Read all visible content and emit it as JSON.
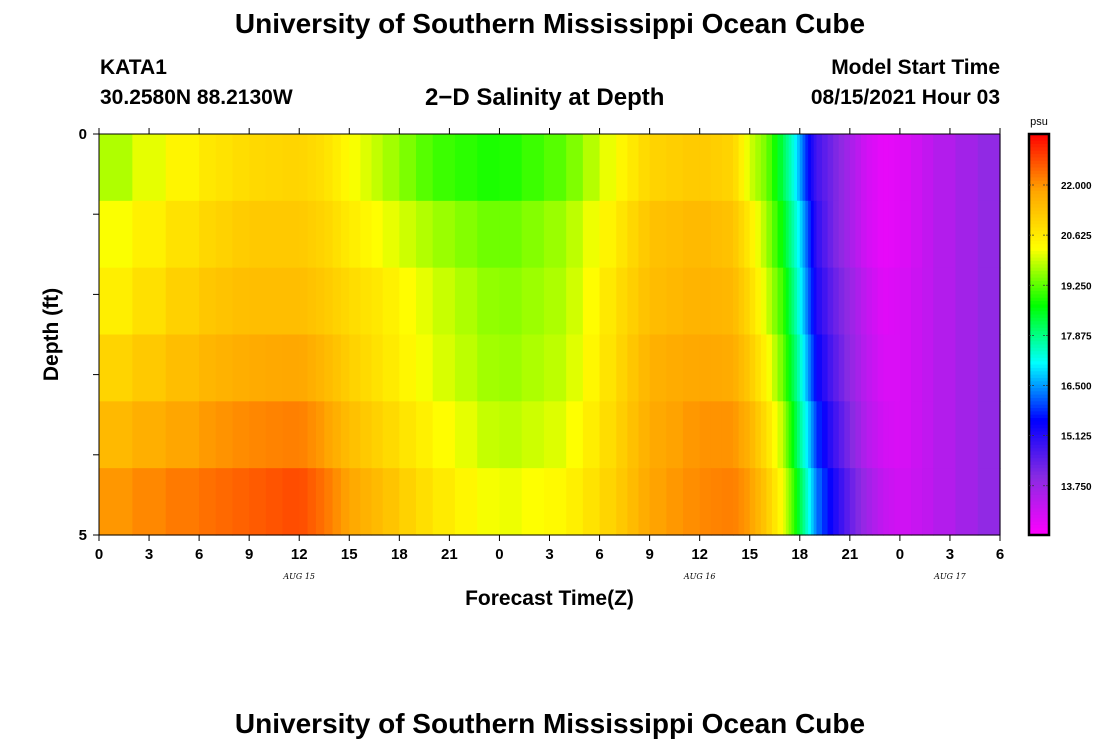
{
  "header": {
    "title": "University of Southern Mississippi Ocean Cube",
    "station": "KATA1",
    "coords": "30.2580N  88.2130W",
    "subtitle": "2−D Salinity at Depth",
    "model_start_label": "Model Start Time",
    "model_start_value": "08/15/2021 Hour 03"
  },
  "footer": {
    "title": "University of Southern Mississippi Ocean Cube"
  },
  "chart_data": {
    "type": "heatmap",
    "title": "2−D Salinity at Depth",
    "xlabel": "Forecast Time(Z)",
    "ylabel": "Depth (ft)",
    "x_hours": [
      0,
      6,
      9,
      12,
      13.5,
      15,
      17,
      20,
      24,
      28,
      31,
      33,
      36,
      38,
      39,
      40,
      41,
      41.5,
      42,
      42.5,
      43,
      44,
      45,
      46,
      47,
      48,
      50,
      54
    ],
    "xlim": [
      0,
      54
    ],
    "ylim": [
      0,
      5
    ],
    "depth_rows": [
      0,
      1,
      2,
      3,
      4,
      5
    ],
    "x_tick_labels": [
      "0",
      "3",
      "6",
      "9",
      "12",
      "15",
      "18",
      "21",
      "0",
      "3",
      "6",
      "9",
      "12",
      "15",
      "18",
      "21",
      "0",
      "3",
      "6"
    ],
    "y_tick_labels": [
      "0",
      "5"
    ],
    "date_labels": [
      {
        "text": "AUG  15",
        "hour": 12
      },
      {
        "text": "AUG  16",
        "hour": 36
      },
      {
        "text": "AUG  17",
        "hour": 51
      }
    ],
    "salinity_psu": [
      [
        19.6,
        20.6,
        20.9,
        21.0,
        20.8,
        20.3,
        19.8,
        19.1,
        18.8,
        19.3,
        20.3,
        21.0,
        21.2,
        21.0,
        20.0,
        19.4,
        18.2,
        17.5,
        16.6,
        15.6,
        14.8,
        14.2,
        13.6,
        13.0,
        12.7,
        12.8,
        13.3,
        14.0
      ],
      [
        20.1,
        20.9,
        21.2,
        21.2,
        21.0,
        20.6,
        20.2,
        19.7,
        19.3,
        19.7,
        20.6,
        21.3,
        21.5,
        21.3,
        20.6,
        19.7,
        18.6,
        17.8,
        17.0,
        16.0,
        15.0,
        14.2,
        13.6,
        13.0,
        12.7,
        12.8,
        13.3,
        14.0
      ],
      [
        20.4,
        21.2,
        21.4,
        21.4,
        21.2,
        20.9,
        20.6,
        20.0,
        19.5,
        19.8,
        20.8,
        21.4,
        21.6,
        21.5,
        20.9,
        20.0,
        19.0,
        18.1,
        17.2,
        16.2,
        15.2,
        14.4,
        13.8,
        13.2,
        12.8,
        12.9,
        13.3,
        14.0
      ],
      [
        20.9,
        21.5,
        21.7,
        21.8,
        21.5,
        21.1,
        20.7,
        20.1,
        19.6,
        19.9,
        20.9,
        21.6,
        21.8,
        21.7,
        21.2,
        20.4,
        19.3,
        18.4,
        17.5,
        16.5,
        15.5,
        14.6,
        13.9,
        13.3,
        12.9,
        12.9,
        13.3,
        14.0
      ],
      [
        21.4,
        21.9,
        22.1,
        22.2,
        21.9,
        21.4,
        21.0,
        20.4,
        19.8,
        20.1,
        21.0,
        21.7,
        22.0,
        22.0,
        21.6,
        20.8,
        19.8,
        18.8,
        17.8,
        16.9,
        15.9,
        14.9,
        14.1,
        13.4,
        13.0,
        12.9,
        13.3,
        14.0
      ],
      [
        21.9,
        22.3,
        22.5,
        22.7,
        22.3,
        21.8,
        21.4,
        20.7,
        20.1,
        20.4,
        21.1,
        21.8,
        22.1,
        22.2,
        21.9,
        21.2,
        20.2,
        19.3,
        18.3,
        17.3,
        16.3,
        15.3,
        14.4,
        13.7,
        13.2,
        13.0,
        13.3,
        14.0
      ]
    ],
    "colorbar": {
      "unit": "psu",
      "range": [
        12.4,
        23.4
      ],
      "tick_labels": [
        "22.000",
        "20.625",
        "19.250",
        "17.875",
        "16.500",
        "15.125",
        "13.750"
      ],
      "tick_values": [
        22.0,
        20.625,
        19.25,
        17.875,
        16.5,
        15.125,
        13.75
      ],
      "color_stops": [
        "#ff00ff",
        "#8a2be2",
        "#0000ff",
        "#00ffff",
        "#00ff00",
        "#ffff00",
        "#ffa500",
        "#ff0000"
      ]
    }
  }
}
